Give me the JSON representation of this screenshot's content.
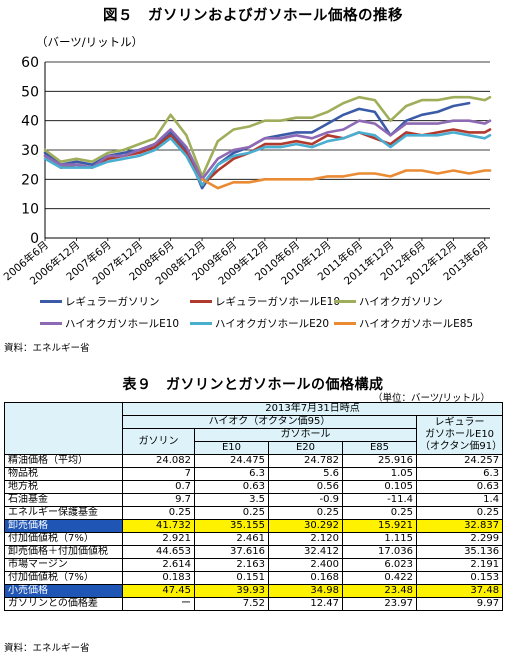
{
  "chart_title": "図５　ガソリンおよびガソホール価格の推移",
  "chart_unit": "（バーツ/リットル）",
  "chart_source": "資料：エネルギー省",
  "chart_data": {
    "type": "line",
    "title": "図５　ガソリンおよびガソホール価格の推移",
    "ylabel": "（バーツ/リットル）",
    "ylim": [
      0,
      60
    ],
    "yticks": [
      0,
      10,
      20,
      30,
      40,
      50,
      60
    ],
    "x_tick_labels": [
      "2006年6月",
      "2006年12月",
      "2007年6月",
      "2007年12月",
      "2008年6月",
      "2008年12月",
      "2009年6月",
      "2009年12月",
      "2010年6月",
      "2010年12月",
      "2011年6月",
      "2011年12月",
      "2012年6月",
      "2012年12月",
      "2013年6月"
    ],
    "x": [
      "2006-06",
      "2006-09",
      "2006-12",
      "2007-03",
      "2007-06",
      "2007-09",
      "2007-12",
      "2008-03",
      "2008-06",
      "2008-09",
      "2008-12",
      "2009-03",
      "2009-06",
      "2009-09",
      "2009-12",
      "2010-03",
      "2010-06",
      "2010-09",
      "2010-12",
      "2011-03",
      "2011-06",
      "2011-09",
      "2011-12",
      "2012-03",
      "2012-06",
      "2012-09",
      "2012-12",
      "2013-03",
      "2013-06",
      "2013-07"
    ],
    "grid": true,
    "legend_position": "bottom",
    "series": [
      {
        "name": "レギュラーガソリン",
        "color": "#3b5ba9",
        "values": [
          29,
          25,
          26,
          25,
          28,
          29,
          30,
          32,
          36,
          30,
          17,
          25,
          29,
          31,
          34,
          35,
          36,
          36,
          39,
          42,
          44,
          43,
          35,
          40,
          42,
          43,
          45,
          46,
          null,
          null
        ]
      },
      {
        "name": "レギュラーガソホールE10",
        "color": "#b03a2e",
        "values": [
          28,
          24,
          25,
          24,
          27,
          28,
          29,
          31,
          35,
          29,
          18,
          23,
          27,
          29,
          32,
          32,
          33,
          32,
          35,
          34,
          36,
          34,
          32,
          36,
          35,
          36,
          37,
          36,
          36,
          37
        ]
      },
      {
        "name": "ハイオクガソリン",
        "color": "#9fae5a",
        "values": [
          30,
          26,
          27,
          26,
          29,
          30,
          32,
          34,
          42,
          35,
          21,
          33,
          37,
          38,
          40,
          40,
          41,
          41,
          43,
          46,
          48,
          47,
          40,
          45,
          47,
          47,
          48,
          48,
          47,
          48
        ]
      },
      {
        "name": "ハイオクガソホールE10",
        "color": "#8e6ab4",
        "values": [
          28,
          25,
          25,
          24,
          28,
          28,
          30,
          32,
          37,
          31,
          20,
          27,
          30,
          31,
          34,
          34,
          35,
          34,
          36,
          37,
          40,
          39,
          35,
          39,
          39,
          39,
          40,
          40,
          39,
          40
        ]
      },
      {
        "name": "ハイオクガソホールE20",
        "color": "#4aaed1",
        "values": [
          27,
          24,
          24,
          24,
          26,
          27,
          28,
          30,
          34,
          28,
          18,
          25,
          28,
          29,
          31,
          31,
          32,
          31,
          33,
          34,
          36,
          35,
          31,
          35,
          35,
          35,
          36,
          35,
          34,
          35
        ]
      },
      {
        "name": "ハイオクガソホールE85",
        "color": "#ea8a33",
        "values": [
          null,
          null,
          null,
          null,
          null,
          null,
          null,
          null,
          null,
          null,
          20,
          17,
          19,
          19,
          20,
          20,
          20,
          20,
          21,
          21,
          22,
          22,
          21,
          23,
          23,
          22,
          23,
          22,
          23,
          23
        ]
      }
    ]
  },
  "table_title": "表９　ガソリンとガソホールの価格構成",
  "table_unit": "（単位：バーツ/リットル）",
  "table_source": "資料：エネルギー省",
  "table": {
    "date_header": "2013年7月31日時点",
    "hiok_header": "ハイオク（オクタン価95）",
    "gasohol_header": "ガソホール",
    "regular_header_line1": "レギュラー",
    "regular_header_line2": "ガソホールE10",
    "regular_header_line3": "（オクタン価91）",
    "gasoline_header": "ガソリン",
    "col_e10": "E10",
    "col_e20": "E20",
    "col_e85": "E85",
    "rows": [
      {
        "label": "精油価格（平均）",
        "values": [
          "24.082",
          "24.475",
          "24.782",
          "25.916",
          "24.257"
        ],
        "highlight": false
      },
      {
        "label": "物品税",
        "values": [
          "7",
          "6.3",
          "5.6",
          "1.05",
          "6.3"
        ],
        "highlight": false
      },
      {
        "label": "地方税",
        "values": [
          "0.7",
          "0.63",
          "0.56",
          "0.105",
          "0.63"
        ],
        "highlight": false
      },
      {
        "label": "石油基金",
        "values": [
          "9.7",
          "3.5",
          "-0.9",
          "-11.4",
          "1.4"
        ],
        "highlight": false
      },
      {
        "label": "エネルギー保護基金",
        "values": [
          "0.25",
          "0.25",
          "0.25",
          "0.25",
          "0.25"
        ],
        "highlight": false
      },
      {
        "label": "卸売価格",
        "values": [
          "41.732",
          "35.155",
          "30.292",
          "15.921",
          "32.837"
        ],
        "highlight": true
      },
      {
        "label": "付加価値税（7%）",
        "values": [
          "2.921",
          "2.461",
          "2.120",
          "1.115",
          "2.299"
        ],
        "highlight": false
      },
      {
        "label": "卸売価格＋付加価値税",
        "values": [
          "44.653",
          "37.616",
          "32.412",
          "17.036",
          "35.136"
        ],
        "highlight": false
      },
      {
        "label": "市場マージン",
        "values": [
          "2.614",
          "2.163",
          "2.400",
          "6.023",
          "2.191"
        ],
        "highlight": false
      },
      {
        "label": "付加価値税（7%）",
        "values": [
          "0.183",
          "0.151",
          "0.168",
          "0.422",
          "0.153"
        ],
        "highlight": false
      },
      {
        "label": "小売価格",
        "values": [
          "47.45",
          "39.93",
          "34.98",
          "23.48",
          "37.48"
        ],
        "highlight": true
      },
      {
        "label": "ガソリンとの価格差",
        "values": [
          "ー",
          "7.52",
          "12.47",
          "23.97",
          "9.97"
        ],
        "highlight": false
      }
    ]
  }
}
